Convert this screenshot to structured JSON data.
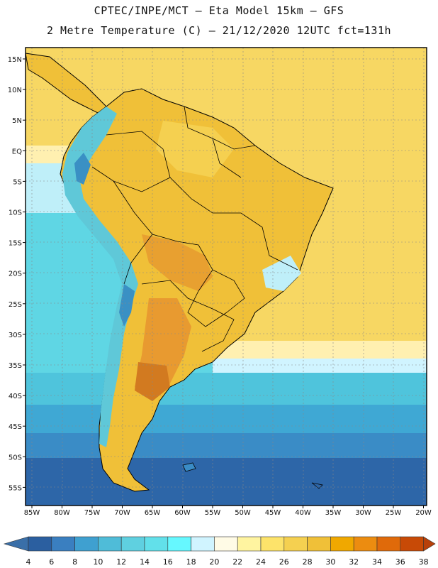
{
  "header": {
    "line1": "CPTEC/INPE/MCT –  Eta Model 15km – GFS",
    "line2": "2 Metre Temperature (C) – 21/12/2020 12UTC fct=131h"
  },
  "axes": {
    "lat_labels": [
      "15N",
      "10N",
      "5N",
      "EQ",
      "5S",
      "10S",
      "15S",
      "20S",
      "25S",
      "30S",
      "35S",
      "40S",
      "45S",
      "50S",
      "55S"
    ],
    "lon_labels": [
      "85W",
      "80W",
      "75W",
      "70W",
      "65W",
      "60W",
      "55W",
      "50W",
      "45W",
      "40W",
      "35W",
      "30W",
      "25W",
      "20W"
    ]
  },
  "colorbar": {
    "ticks": [
      "4",
      "6",
      "8",
      "10",
      "12",
      "14",
      "16",
      "18",
      "20",
      "22",
      "24",
      "26",
      "28",
      "30",
      "32",
      "34",
      "36",
      "38"
    ],
    "colors": [
      "#2b5fa0",
      "#3a7fc0",
      "#3fa0d0",
      "#4fbcd8",
      "#5fd0e0",
      "#62e0ea",
      "#66f8ff",
      "#d0f4ff",
      "#fffbe6",
      "#fff4a0",
      "#fde36a",
      "#f5d050",
      "#f0c038",
      "#f0a800",
      "#ec8c10",
      "#e06a0a",
      "#c84a06"
    ],
    "end_low": "#3a6fa8",
    "end_high": "#b8400a"
  },
  "palette": {
    "ocean_deep": "#2a5da0",
    "ocean_mid": "#3ba0d0",
    "ocean_light": "#5fd8e6",
    "ocean_warm": "#fde36a",
    "land": "#f0c038",
    "land_hot": "#e08a20",
    "andes": "#60c8d8"
  }
}
